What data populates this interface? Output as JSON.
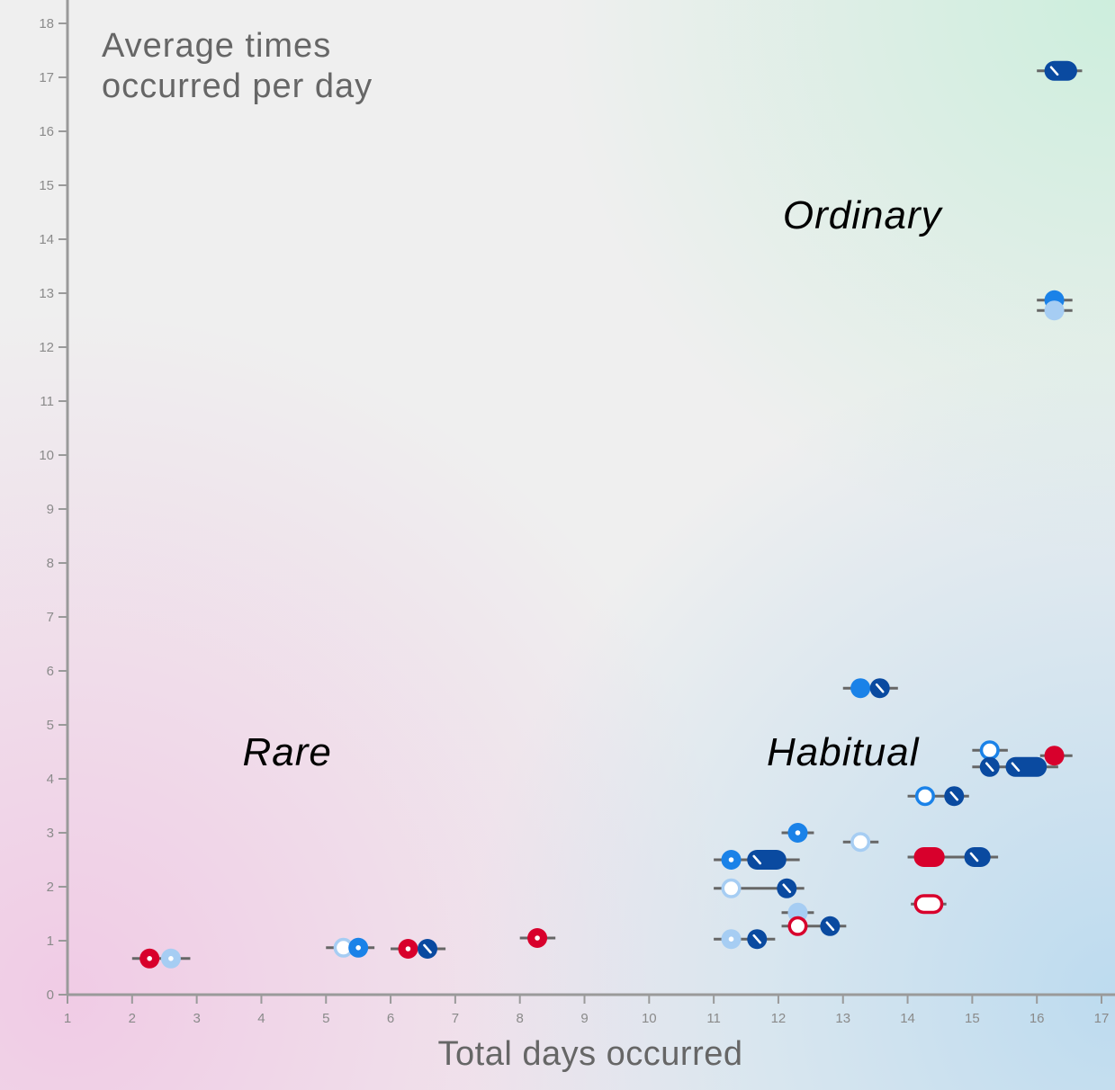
{
  "chart_data": {
    "type": "scatter",
    "xlabel": "Total days occurred",
    "ylabel_lines": [
      "Average times",
      "occurred per day"
    ],
    "xlim": [
      1,
      17
    ],
    "ylim": [
      0,
      18
    ],
    "x_ticks": [
      1,
      2,
      3,
      4,
      5,
      6,
      7,
      8,
      9,
      10,
      11,
      12,
      13,
      14,
      15,
      16,
      17
    ],
    "y_ticks": [
      0,
      1,
      2,
      3,
      4,
      5,
      6,
      7,
      8,
      9,
      10,
      11,
      12,
      13,
      14,
      15,
      16,
      17,
      18
    ],
    "grid": false,
    "region_labels": [
      {
        "text": "Ordinary",
        "x": 13.3,
        "y": 14.2
      },
      {
        "text": "Rare",
        "x": 4.4,
        "y": 4.25
      },
      {
        "text": "Habitual",
        "x": 13.0,
        "y": 4.25
      }
    ],
    "colors": {
      "red": "#d8002c",
      "blue": "#1a82e8",
      "dark_blue": "#0a4aa0",
      "light_blue": "#a6cdf3",
      "range_line": "#666666",
      "axis": "#9a9a9a",
      "gradient_rare": "#f0cbe5",
      "gradient_ordinary": "#cdeedd",
      "gradient_habitual": "#bddbef"
    },
    "points": [
      {
        "x1": 2.0,
        "x2": 2.9,
        "y": 0.67
      },
      {
        "x": 2.27,
        "y": 0.67,
        "color": "red",
        "style": "dot"
      },
      {
        "x": 2.6,
        "y": 0.67,
        "color": "light_blue",
        "style": "dot"
      },
      {
        "x1": 5.0,
        "x2": 5.75,
        "y": 0.87
      },
      {
        "x": 5.27,
        "y": 0.87,
        "color": "light_blue",
        "style": "ring"
      },
      {
        "x": 5.5,
        "y": 0.87,
        "color": "blue",
        "style": "dot"
      },
      {
        "x1": 6.0,
        "x2": 6.85,
        "y": 0.85
      },
      {
        "x": 6.27,
        "y": 0.85,
        "color": "red",
        "style": "dot"
      },
      {
        "x": 6.57,
        "y": 0.85,
        "color": "dark_blue",
        "style": "slash"
      },
      {
        "x1": 8.0,
        "x2": 8.55,
        "y": 1.05
      },
      {
        "x": 8.27,
        "y": 1.05,
        "color": "red",
        "style": "dot"
      },
      {
        "x1": 11.0,
        "x2": 11.95,
        "y": 1.03
      },
      {
        "x": 11.27,
        "y": 1.03,
        "color": "light_blue",
        "style": "dot"
      },
      {
        "x": 11.67,
        "y": 1.03,
        "color": "dark_blue",
        "style": "slash"
      },
      {
        "x1": 11.0,
        "x2": 12.4,
        "y": 1.97
      },
      {
        "x": 11.27,
        "y": 1.97,
        "color": "light_blue",
        "style": "ring"
      },
      {
        "x": 12.13,
        "y": 1.97,
        "color": "dark_blue",
        "style": "slash"
      },
      {
        "x1": 11.0,
        "x2": 12.33,
        "y": 2.5
      },
      {
        "x": 11.27,
        "y": 2.5,
        "color": "blue",
        "style": "dot"
      },
      {
        "x1": 11.67,
        "x2": 11.97,
        "y": 2.5,
        "color": "dark_blue",
        "style": "pill_slash"
      },
      {
        "x1": 12.05,
        "x2": 12.55,
        "y": 3.0
      },
      {
        "x": 12.3,
        "y": 3.0,
        "color": "blue",
        "style": "dot"
      },
      {
        "x1": 12.05,
        "x2": 12.55,
        "y": 1.52
      },
      {
        "x": 12.3,
        "y": 1.52,
        "color": "light_blue",
        "style": "solid"
      },
      {
        "x1": 12.05,
        "x2": 13.05,
        "y": 1.27
      },
      {
        "x": 12.3,
        "y": 1.27,
        "color": "red",
        "style": "ring"
      },
      {
        "x": 12.8,
        "y": 1.27,
        "color": "dark_blue",
        "style": "slash"
      },
      {
        "x1": 13.0,
        "x2": 13.55,
        "y": 2.83
      },
      {
        "x": 13.27,
        "y": 2.83,
        "color": "light_blue",
        "style": "ring"
      },
      {
        "x1": 13.0,
        "x2": 13.85,
        "y": 5.68
      },
      {
        "x": 13.27,
        "y": 5.68,
        "color": "blue",
        "style": "solid"
      },
      {
        "x": 13.57,
        "y": 5.68,
        "color": "dark_blue",
        "style": "slash"
      },
      {
        "x1": 14.0,
        "x2": 14.95,
        "y": 3.68
      },
      {
        "x": 14.27,
        "y": 3.68,
        "color": "blue",
        "style": "ring"
      },
      {
        "x": 14.72,
        "y": 3.68,
        "color": "dark_blue",
        "style": "slash"
      },
      {
        "x1": 14.0,
        "x2": 15.4,
        "y": 2.55
      },
      {
        "x1": 14.25,
        "x2": 14.42,
        "y": 2.55,
        "color": "red",
        "style": "pill_solid"
      },
      {
        "x1": 15.03,
        "x2": 15.13,
        "y": 2.55,
        "color": "dark_blue",
        "style": "pill_slash"
      },
      {
        "x1": 14.05,
        "x2": 14.6,
        "y": 1.68
      },
      {
        "x1": 14.25,
        "x2": 14.4,
        "y": 1.68,
        "color": "red",
        "style": "pill_ring"
      },
      {
        "x1": 15.0,
        "x2": 15.55,
        "y": 4.53
      },
      {
        "x": 15.27,
        "y": 4.53,
        "color": "blue",
        "style": "ring"
      },
      {
        "x1": 15.0,
        "x2": 16.33,
        "y": 4.22
      },
      {
        "x": 15.27,
        "y": 4.22,
        "color": "dark_blue",
        "style": "slash"
      },
      {
        "x1": 15.67,
        "x2": 16.0,
        "y": 4.22,
        "color": "dark_blue",
        "style": "pill_slash"
      },
      {
        "x1": 16.05,
        "x2": 16.55,
        "y": 4.43
      },
      {
        "x": 16.27,
        "y": 4.43,
        "color": "red",
        "style": "solid"
      },
      {
        "x1": 16.0,
        "x2": 16.55,
        "y": 12.87
      },
      {
        "x": 16.27,
        "y": 12.87,
        "color": "blue",
        "style": "solid"
      },
      {
        "x1": 16.0,
        "x2": 16.55,
        "y": 12.68
      },
      {
        "x": 16.27,
        "y": 12.68,
        "color": "light_blue",
        "style": "solid"
      },
      {
        "x1": 16.0,
        "x2": 16.7,
        "y": 17.12
      },
      {
        "x1": 16.27,
        "x2": 16.47,
        "y": 17.12,
        "color": "dark_blue",
        "style": "pill_slash"
      }
    ]
  }
}
